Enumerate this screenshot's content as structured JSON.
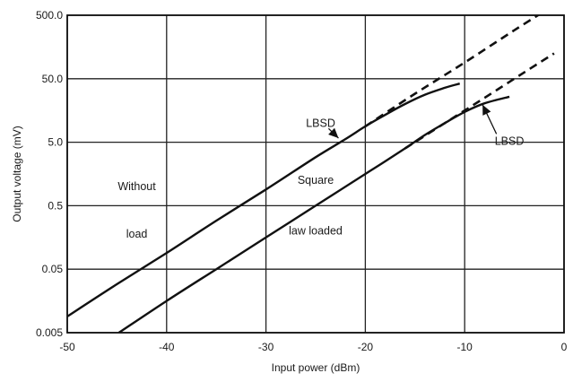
{
  "chart_data": {
    "type": "line",
    "title": "",
    "xlabel": "Input power (dBm)",
    "ylabel": "Output voltage (mV)",
    "xlim": [
      -50,
      0
    ],
    "ylim": [
      0.005,
      500
    ],
    "yscale": "log",
    "grid": true,
    "x_ticks": [
      -50,
      -40,
      -30,
      -20,
      -10,
      0
    ],
    "x_tick_labels": [
      "-50",
      "-40",
      "-30",
      "-20",
      "-10",
      "0"
    ],
    "y_ticks": [
      0.005,
      0.05,
      0.5,
      5,
      50,
      500
    ],
    "y_tick_labels": [
      "0.005",
      "0.05",
      "0.5",
      "5.0",
      "50.0",
      "500.0"
    ],
    "series": [
      {
        "style": "solid",
        "x": [
          -50,
          -45,
          -40,
          -35,
          -30,
          -25,
          -22,
          -20,
          -18,
          -16,
          -14,
          -12,
          -10.5
        ],
        "y": [
          0.009,
          0.029,
          0.09,
          0.29,
          0.9,
          2.9,
          5.6,
          8.9,
          13.5,
          20,
          28,
          36,
          42
        ]
      },
      {
        "style": "dashed",
        "x": [
          -20,
          -15,
          -10,
          -5,
          -1
        ],
        "y": [
          8.9,
          29,
          90,
          290,
          720
        ]
      },
      {
        "style": "solid",
        "x": [
          -44.8,
          -40,
          -35,
          -30,
          -25,
          -20,
          -18,
          -16,
          -14,
          -12,
          -10,
          -8,
          -5.5
        ],
        "y": [
          0.005,
          0.0158,
          0.05,
          0.158,
          0.5,
          1.58,
          2.5,
          4,
          6.5,
          10,
          15,
          20.5,
          26
        ]
      },
      {
        "style": "dashed",
        "x": [
          -16,
          -12,
          -8,
          -4,
          -1
        ],
        "y": [
          4,
          10,
          25,
          63,
          125
        ]
      }
    ],
    "annotations": [
      {
        "text": "LBSD",
        "x": -24.5,
        "y": 10
      },
      {
        "text": "LBSD",
        "x": -5.5,
        "y": 5.2
      },
      {
        "text": "Without",
        "x": -43,
        "y": 1.0
      },
      {
        "text": "load",
        "x": -43,
        "y": 0.18
      },
      {
        "text": "Square",
        "x": -25,
        "y": 1.25
      },
      {
        "text": "law loaded",
        "x": -25,
        "y": 0.2
      }
    ]
  }
}
